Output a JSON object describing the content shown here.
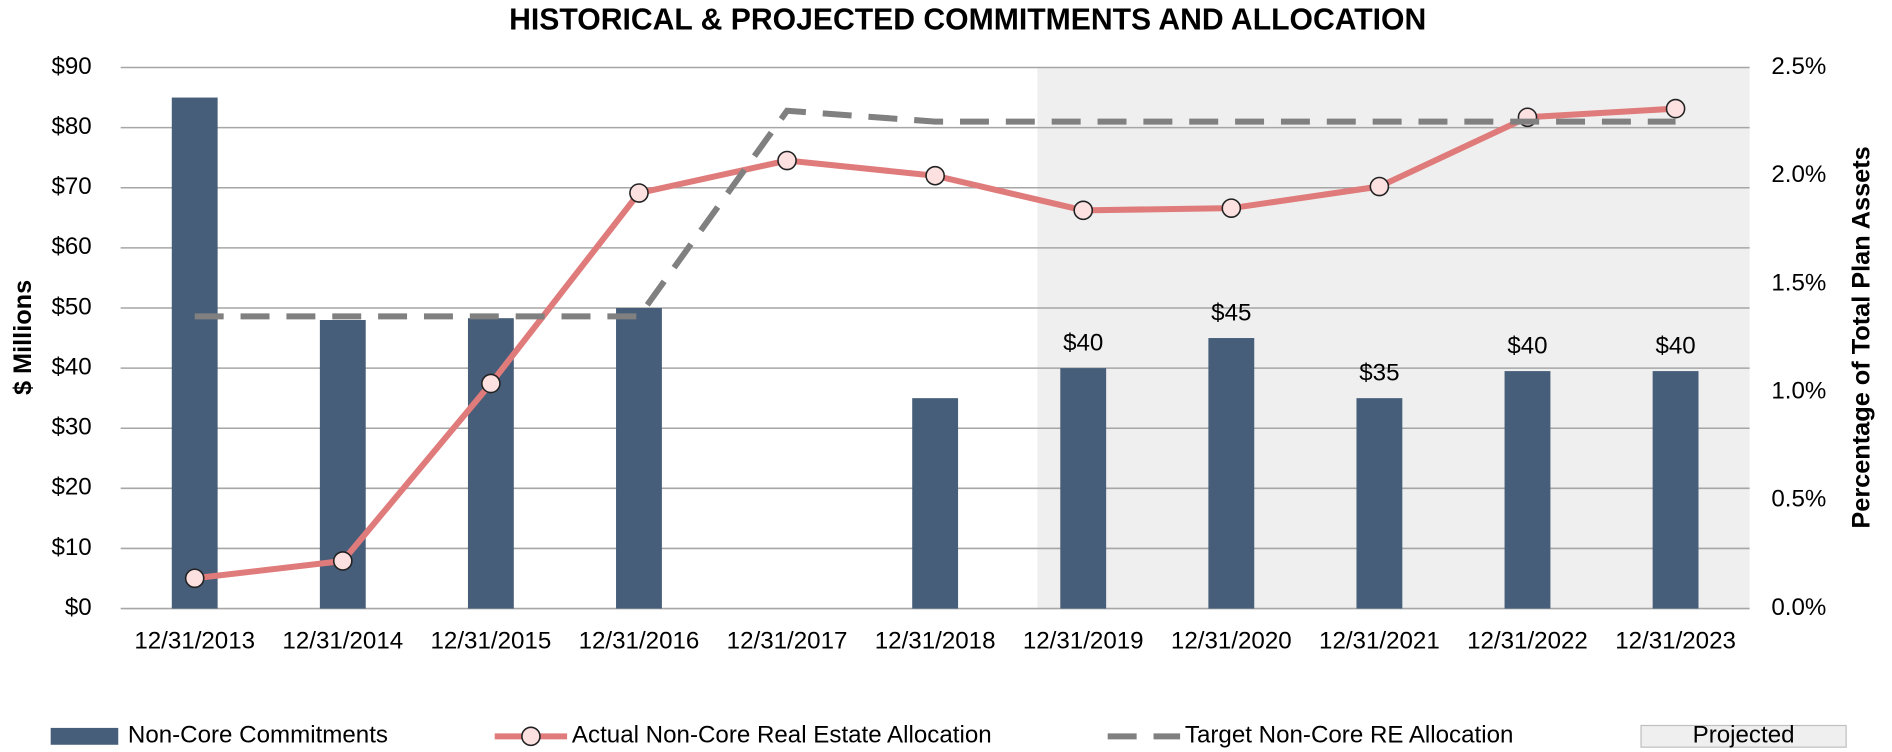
{
  "chart_data": {
    "type": "bar",
    "title": "HISTORICAL & PROJECTED COMMITMENTS AND ALLOCATION",
    "y_label": "$ Millions",
    "y2_label": "Percentage of Total Plan Assets",
    "categories": [
      "12/31/2013",
      "12/31/2014",
      "12/31/2015",
      "12/31/2016",
      "12/31/2017",
      "12/31/2018",
      "12/31/2019",
      "12/31/2020",
      "12/31/2021",
      "12/31/2022",
      "12/31/2023"
    ],
    "ylim": [
      0,
      90
    ],
    "yticks": [
      {
        "value": 0,
        "label": "$0"
      },
      {
        "value": 10,
        "label": "$10"
      },
      {
        "value": 20,
        "label": "$20"
      },
      {
        "value": 30,
        "label": "$30"
      },
      {
        "value": 40,
        "label": "$40"
      },
      {
        "value": 50,
        "label": "$50"
      },
      {
        "value": 60,
        "label": "$60"
      },
      {
        "value": 70,
        "label": "$70"
      },
      {
        "value": 80,
        "label": "$80"
      },
      {
        "value": 90,
        "label": "$90"
      }
    ],
    "y2lim": [
      0,
      2.5
    ],
    "y2ticks": [
      {
        "value": 0,
        "label": "0.0%"
      },
      {
        "value": 0.5,
        "label": "0.5%"
      },
      {
        "value": 1,
        "label": "1.0%"
      },
      {
        "value": 1.5,
        "label": "1.5%"
      },
      {
        "value": 2,
        "label": "2.0%"
      },
      {
        "value": 2.5,
        "label": "2.5%"
      }
    ],
    "grid": true,
    "legend": "bottom",
    "series": [
      {
        "name": "Non-Core Commitments",
        "type": "bar",
        "color": "#465e79",
        "values": [
          85,
          48,
          48.3,
          50,
          null,
          35,
          40,
          45,
          35,
          39.5,
          39.5
        ],
        "value_labels": [
          null,
          null,
          null,
          null,
          null,
          null,
          "$40",
          "$45",
          "$35",
          "$40",
          "$40"
        ]
      },
      {
        "name": "Actual Non-Core Real Estate Allocation",
        "type": "line",
        "axis": "y2",
        "color": "#e07b7b",
        "marker": true,
        "values": [
          0.14,
          0.22,
          1.04,
          1.92,
          2.07,
          2.0,
          1.84,
          1.85,
          1.95,
          2.27,
          2.31
        ]
      },
      {
        "name": "Target Non-Core RE Allocation",
        "type": "line",
        "axis": "y2",
        "color": "#808080",
        "dashed": true,
        "values": [
          1.35,
          1.35,
          1.35,
          1.35,
          2.3,
          2.25,
          2.25,
          2.25,
          2.25,
          2.25,
          2.25
        ]
      }
    ],
    "shaded_region_label": "Projected"
  }
}
